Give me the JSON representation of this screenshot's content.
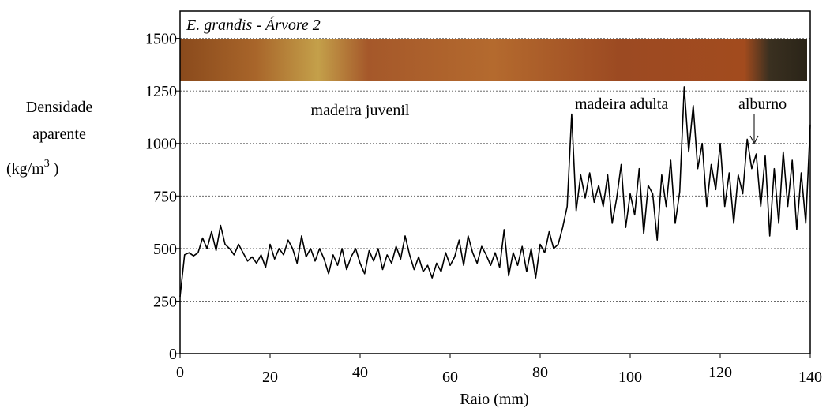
{
  "chart_data": {
    "type": "line",
    "title": "E. grandis - Árvore 2",
    "xlabel": "Raio (mm)",
    "ylabel": {
      "lines": [
        "Densidade",
        "aparente",
        "(kg/m"
      ],
      "superscript": "3",
      "suffix": " )"
    },
    "annotations": [
      "madeira juvenil",
      "madeira adulta",
      "alburno"
    ],
    "x": [
      0,
      1,
      2,
      3,
      4,
      5,
      6,
      7,
      8,
      9,
      10,
      11,
      12,
      13,
      14,
      15,
      16,
      17,
      18,
      19,
      20,
      21,
      22,
      23,
      24,
      25,
      26,
      27,
      28,
      29,
      30,
      31,
      32,
      33,
      34,
      35,
      36,
      37,
      38,
      39,
      40,
      41,
      42,
      43,
      44,
      45,
      46,
      47,
      48,
      49,
      50,
      51,
      52,
      53,
      54,
      55,
      56,
      57,
      58,
      59,
      60,
      61,
      62,
      63,
      64,
      65,
      66,
      67,
      68,
      69,
      70,
      71,
      72,
      73,
      74,
      75,
      76,
      77,
      78,
      79,
      80,
      81,
      82,
      83,
      84,
      85,
      86,
      87,
      88,
      89,
      90,
      91,
      92,
      93,
      94,
      95,
      96,
      97,
      98,
      99,
      100,
      101,
      102,
      103,
      104,
      105,
      106,
      107,
      108,
      109,
      110,
      111,
      112,
      113,
      114,
      115,
      116,
      117,
      118,
      119,
      120,
      121,
      122,
      123,
      124,
      125,
      126,
      127,
      128,
      129,
      130,
      131,
      132,
      133,
      134,
      135,
      136,
      137,
      138,
      139,
      140
    ],
    "series": [
      {
        "color": "#000000",
        "values": [
          270,
          470,
          480,
          465,
          480,
          550,
          500,
          580,
          490,
          610,
          520,
          500,
          470,
          520,
          480,
          440,
          460,
          430,
          470,
          410,
          520,
          450,
          500,
          470,
          540,
          500,
          430,
          560,
          460,
          500,
          440,
          500,
          450,
          380,
          470,
          420,
          500,
          400,
          460,
          500,
          430,
          380,
          490,
          440,
          500,
          400,
          470,
          430,
          510,
          450,
          560,
          470,
          400,
          460,
          390,
          420,
          360,
          430,
          390,
          480,
          420,
          460,
          540,
          420,
          560,
          480,
          430,
          510,
          470,
          420,
          480,
          410,
          590,
          370,
          480,
          420,
          510,
          390,
          500,
          360,
          520,
          480,
          580,
          500,
          520,
          600,
          700,
          1140,
          680,
          850,
          740,
          860,
          720,
          800,
          700,
          850,
          620,
          740,
          900,
          600,
          760,
          660,
          880,
          570,
          800,
          760,
          540,
          850,
          700,
          920,
          620,
          770,
          1270,
          960,
          1180,
          880,
          1000,
          700,
          900,
          780,
          1000,
          700,
          860,
          620,
          850,
          760,
          1020,
          880,
          950,
          700,
          940,
          560,
          880,
          620,
          960,
          700,
          920,
          590,
          860,
          620,
          1090
        ]
      }
    ],
    "xlim": [
      0,
      140
    ],
    "xticks": [
      0,
      20,
      40,
      60,
      80,
      100,
      120,
      140
    ],
    "ylim": [
      0,
      1630
    ],
    "yticks": [
      0,
      250,
      500,
      750,
      1000,
      1250,
      1500
    ],
    "grid": true
  }
}
